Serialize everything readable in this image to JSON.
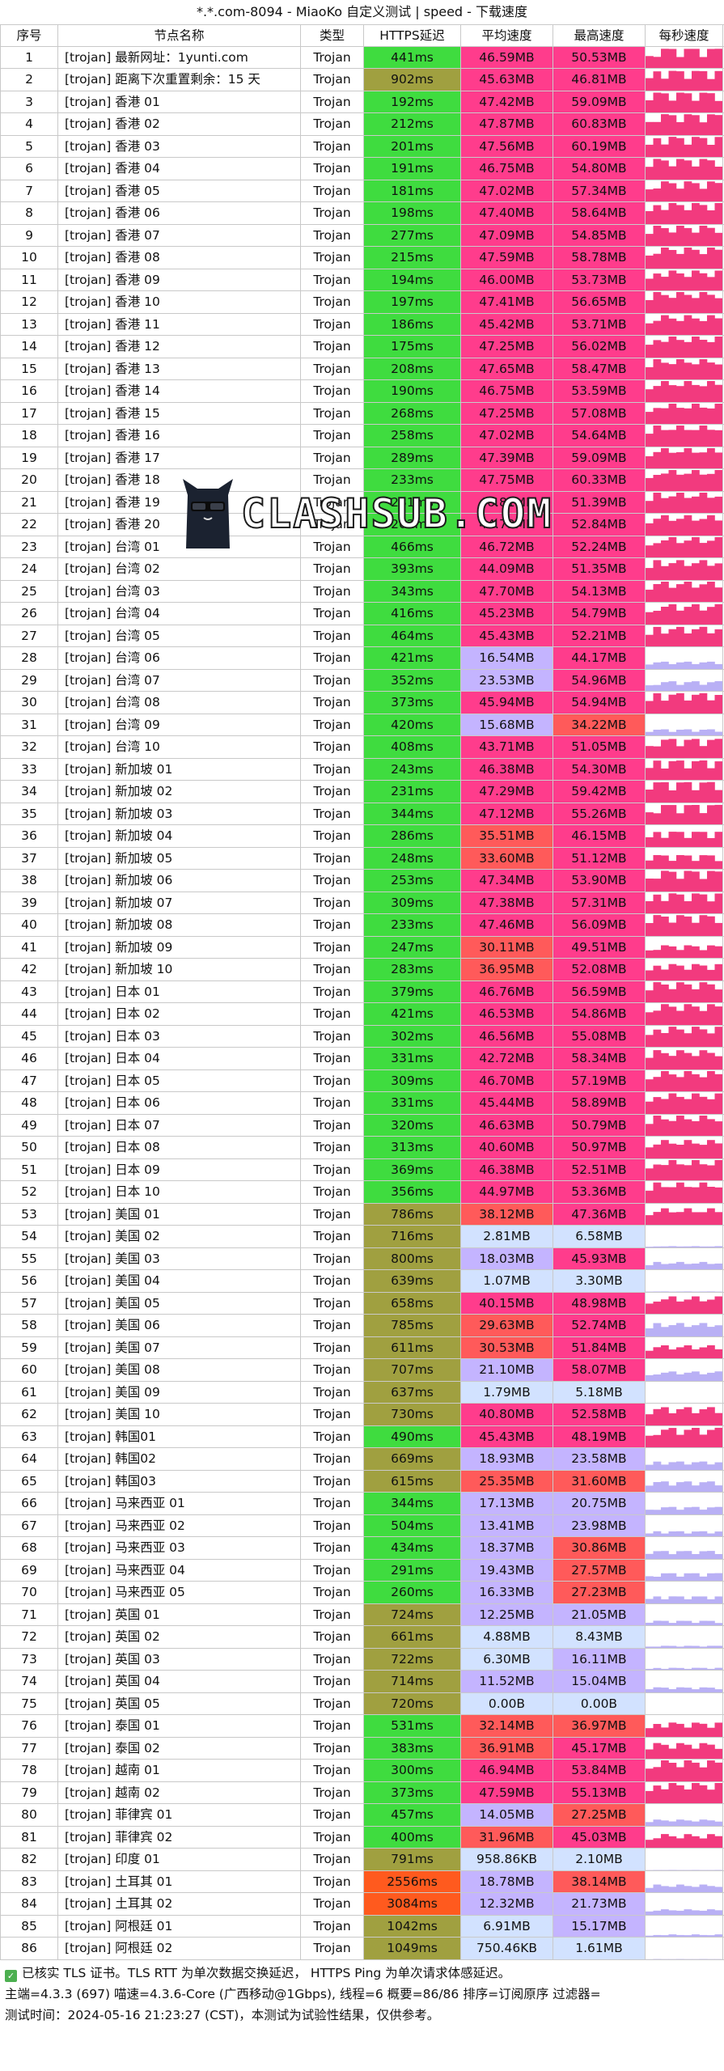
{
  "title": "*.*.com-8094 - MiaoKo 自定义测试 | speed - 下载速度",
  "watermark": {
    "text": "CLASHSUB.COM",
    "bg_text": "MiaoKo"
  },
  "columns": [
    "序号",
    "节点名称",
    "类型",
    "HTTPS延迟",
    "平均速度",
    "最高速度",
    "每秒速度"
  ],
  "colors": {
    "ping_green": "#3fdc3f",
    "ping_olive": "#a0a040",
    "ping_orange": "#ff5a1e",
    "speed_pink": "#ff3c8c",
    "speed_red": "#ff5a5a",
    "speed_lavender": "#c4b4ff",
    "speed_light": "#d2e2ff",
    "graph_pink": "#f23a7e",
    "graph_lavender": "#b9b0f5"
  },
  "rows": [
    {
      "idx": "1",
      "name": "[trojan] 最新网址：1yunti.com",
      "type": "Trojan",
      "ping": "441ms",
      "avg": "46.59MB",
      "max": "50.53MB"
    },
    {
      "idx": "2",
      "name": "[trojan] 距离下次重置剩余：15 天",
      "type": "Trojan",
      "ping": "902ms",
      "avg": "45.63MB",
      "max": "46.81MB"
    },
    {
      "idx": "3",
      "name": "[trojan] 香港 01",
      "type": "Trojan",
      "ping": "192ms",
      "avg": "47.42MB",
      "max": "59.09MB"
    },
    {
      "idx": "4",
      "name": "[trojan] 香港 02",
      "type": "Trojan",
      "ping": "212ms",
      "avg": "47.87MB",
      "max": "60.83MB"
    },
    {
      "idx": "5",
      "name": "[trojan] 香港 03",
      "type": "Trojan",
      "ping": "201ms",
      "avg": "47.56MB",
      "max": "60.19MB"
    },
    {
      "idx": "6",
      "name": "[trojan] 香港 04",
      "type": "Trojan",
      "ping": "191ms",
      "avg": "46.75MB",
      "max": "54.80MB"
    },
    {
      "idx": "7",
      "name": "[trojan] 香港 05",
      "type": "Trojan",
      "ping": "181ms",
      "avg": "47.02MB",
      "max": "57.34MB"
    },
    {
      "idx": "8",
      "name": "[trojan] 香港 06",
      "type": "Trojan",
      "ping": "198ms",
      "avg": "47.40MB",
      "max": "58.64MB"
    },
    {
      "idx": "9",
      "name": "[trojan] 香港 07",
      "type": "Trojan",
      "ping": "277ms",
      "avg": "47.09MB",
      "max": "54.85MB"
    },
    {
      "idx": "10",
      "name": "[trojan] 香港 08",
      "type": "Trojan",
      "ping": "215ms",
      "avg": "47.59MB",
      "max": "58.78MB"
    },
    {
      "idx": "11",
      "name": "[trojan] 香港 09",
      "type": "Trojan",
      "ping": "194ms",
      "avg": "46.00MB",
      "max": "53.73MB"
    },
    {
      "idx": "12",
      "name": "[trojan] 香港 10",
      "type": "Trojan",
      "ping": "197ms",
      "avg": "47.41MB",
      "max": "56.65MB"
    },
    {
      "idx": "13",
      "name": "[trojan] 香港 11",
      "type": "Trojan",
      "ping": "186ms",
      "avg": "45.42MB",
      "max": "53.71MB"
    },
    {
      "idx": "14",
      "name": "[trojan] 香港 12",
      "type": "Trojan",
      "ping": "175ms",
      "avg": "47.25MB",
      "max": "56.02MB"
    },
    {
      "idx": "15",
      "name": "[trojan] 香港 13",
      "type": "Trojan",
      "ping": "208ms",
      "avg": "47.65MB",
      "max": "58.47MB"
    },
    {
      "idx": "16",
      "name": "[trojan] 香港 14",
      "type": "Trojan",
      "ping": "190ms",
      "avg": "46.75MB",
      "max": "53.59MB"
    },
    {
      "idx": "17",
      "name": "[trojan] 香港 15",
      "type": "Trojan",
      "ping": "268ms",
      "avg": "47.25MB",
      "max": "57.08MB"
    },
    {
      "idx": "18",
      "name": "[trojan] 香港 16",
      "type": "Trojan",
      "ping": "258ms",
      "avg": "47.02MB",
      "max": "54.64MB"
    },
    {
      "idx": "19",
      "name": "[trojan] 香港 17",
      "type": "Trojan",
      "ping": "289ms",
      "avg": "47.39MB",
      "max": "59.09MB"
    },
    {
      "idx": "20",
      "name": "[trojan] 香港 18",
      "type": "Trojan",
      "ping": "233ms",
      "avg": "47.75MB",
      "max": "60.33MB"
    },
    {
      "idx": "21",
      "name": "[trojan] 香港 19",
      "type": "Trojan",
      "ping": "281ms",
      "avg": "46.81MB",
      "max": "51.39MB"
    },
    {
      "idx": "22",
      "name": "[trojan] 香港 20",
      "type": "Trojan",
      "ping": "202ms",
      "avg": "44.73MB",
      "max": "52.84MB"
    },
    {
      "idx": "23",
      "name": "[trojan] 台湾 01",
      "type": "Trojan",
      "ping": "466ms",
      "avg": "46.72MB",
      "max": "52.24MB"
    },
    {
      "idx": "24",
      "name": "[trojan] 台湾 02",
      "type": "Trojan",
      "ping": "393ms",
      "avg": "44.09MB",
      "max": "51.35MB"
    },
    {
      "idx": "25",
      "name": "[trojan] 台湾 03",
      "type": "Trojan",
      "ping": "343ms",
      "avg": "47.70MB",
      "max": "54.13MB"
    },
    {
      "idx": "26",
      "name": "[trojan] 台湾 04",
      "type": "Trojan",
      "ping": "416ms",
      "avg": "45.23MB",
      "max": "54.79MB"
    },
    {
      "idx": "27",
      "name": "[trojan] 台湾 05",
      "type": "Trojan",
      "ping": "464ms",
      "avg": "45.43MB",
      "max": "52.21MB"
    },
    {
      "idx": "28",
      "name": "[trojan] 台湾 06",
      "type": "Trojan",
      "ping": "421ms",
      "avg": "16.54MB",
      "max": "44.17MB"
    },
    {
      "idx": "29",
      "name": "[trojan] 台湾 07",
      "type": "Trojan",
      "ping": "352ms",
      "avg": "23.53MB",
      "max": "54.96MB"
    },
    {
      "idx": "30",
      "name": "[trojan] 台湾 08",
      "type": "Trojan",
      "ping": "373ms",
      "avg": "45.94MB",
      "max": "54.94MB"
    },
    {
      "idx": "31",
      "name": "[trojan] 台湾 09",
      "type": "Trojan",
      "ping": "420ms",
      "avg": "15.68MB",
      "max": "34.22MB"
    },
    {
      "idx": "32",
      "name": "[trojan] 台湾 10",
      "type": "Trojan",
      "ping": "408ms",
      "avg": "43.71MB",
      "max": "51.05MB"
    },
    {
      "idx": "33",
      "name": "[trojan] 新加坡 01",
      "type": "Trojan",
      "ping": "243ms",
      "avg": "46.38MB",
      "max": "54.30MB"
    },
    {
      "idx": "34",
      "name": "[trojan] 新加坡 02",
      "type": "Trojan",
      "ping": "231ms",
      "avg": "47.29MB",
      "max": "59.42MB"
    },
    {
      "idx": "35",
      "name": "[trojan] 新加坡 03",
      "type": "Trojan",
      "ping": "344ms",
      "avg": "47.12MB",
      "max": "55.26MB"
    },
    {
      "idx": "36",
      "name": "[trojan] 新加坡 04",
      "type": "Trojan",
      "ping": "286ms",
      "avg": "35.51MB",
      "max": "46.15MB"
    },
    {
      "idx": "37",
      "name": "[trojan] 新加坡 05",
      "type": "Trojan",
      "ping": "248ms",
      "avg": "33.60MB",
      "max": "51.12MB"
    },
    {
      "idx": "38",
      "name": "[trojan] 新加坡 06",
      "type": "Trojan",
      "ping": "253ms",
      "avg": "47.34MB",
      "max": "53.90MB"
    },
    {
      "idx": "39",
      "name": "[trojan] 新加坡 07",
      "type": "Trojan",
      "ping": "309ms",
      "avg": "47.38MB",
      "max": "57.31MB"
    },
    {
      "idx": "40",
      "name": "[trojan] 新加坡 08",
      "type": "Trojan",
      "ping": "233ms",
      "avg": "47.46MB",
      "max": "56.09MB"
    },
    {
      "idx": "41",
      "name": "[trojan] 新加坡 09",
      "type": "Trojan",
      "ping": "247ms",
      "avg": "30.11MB",
      "max": "49.51MB"
    },
    {
      "idx": "42",
      "name": "[trojan] 新加坡 10",
      "type": "Trojan",
      "ping": "283ms",
      "avg": "36.95MB",
      "max": "52.08MB"
    },
    {
      "idx": "43",
      "name": "[trojan] 日本 01",
      "type": "Trojan",
      "ping": "379ms",
      "avg": "46.76MB",
      "max": "56.59MB"
    },
    {
      "idx": "44",
      "name": "[trojan] 日本 02",
      "type": "Trojan",
      "ping": "421ms",
      "avg": "46.53MB",
      "max": "54.86MB"
    },
    {
      "idx": "45",
      "name": "[trojan] 日本 03",
      "type": "Trojan",
      "ping": "302ms",
      "avg": "46.56MB",
      "max": "55.08MB"
    },
    {
      "idx": "46",
      "name": "[trojan] 日本 04",
      "type": "Trojan",
      "ping": "331ms",
      "avg": "42.72MB",
      "max": "58.34MB"
    },
    {
      "idx": "47",
      "name": "[trojan] 日本 05",
      "type": "Trojan",
      "ping": "309ms",
      "avg": "46.70MB",
      "max": "57.19MB"
    },
    {
      "idx": "48",
      "name": "[trojan] 日本 06",
      "type": "Trojan",
      "ping": "331ms",
      "avg": "45.44MB",
      "max": "58.89MB"
    },
    {
      "idx": "49",
      "name": "[trojan] 日本 07",
      "type": "Trojan",
      "ping": "320ms",
      "avg": "46.63MB",
      "max": "50.79MB"
    },
    {
      "idx": "50",
      "name": "[trojan] 日本 08",
      "type": "Trojan",
      "ping": "313ms",
      "avg": "40.60MB",
      "max": "50.97MB"
    },
    {
      "idx": "51",
      "name": "[trojan] 日本 09",
      "type": "Trojan",
      "ping": "369ms",
      "avg": "46.38MB",
      "max": "52.51MB"
    },
    {
      "idx": "52",
      "name": "[trojan] 日本 10",
      "type": "Trojan",
      "ping": "356ms",
      "avg": "44.97MB",
      "max": "53.36MB"
    },
    {
      "idx": "53",
      "name": "[trojan] 美国 01",
      "type": "Trojan",
      "ping": "786ms",
      "avg": "38.12MB",
      "max": "47.36MB"
    },
    {
      "idx": "54",
      "name": "[trojan] 美国 02",
      "type": "Trojan",
      "ping": "716ms",
      "avg": "2.81MB",
      "max": "6.58MB"
    },
    {
      "idx": "55",
      "name": "[trojan] 美国 03",
      "type": "Trojan",
      "ping": "800ms",
      "avg": "18.03MB",
      "max": "45.93MB"
    },
    {
      "idx": "56",
      "name": "[trojan] 美国 04",
      "type": "Trojan",
      "ping": "639ms",
      "avg": "1.07MB",
      "max": "3.30MB"
    },
    {
      "idx": "57",
      "name": "[trojan] 美国 05",
      "type": "Trojan",
      "ping": "658ms",
      "avg": "40.15MB",
      "max": "48.98MB"
    },
    {
      "idx": "58",
      "name": "[trojan] 美国 06",
      "type": "Trojan",
      "ping": "785ms",
      "avg": "29.63MB",
      "max": "52.74MB"
    },
    {
      "idx": "59",
      "name": "[trojan] 美国 07",
      "type": "Trojan",
      "ping": "611ms",
      "avg": "30.53MB",
      "max": "51.84MB"
    },
    {
      "idx": "60",
      "name": "[trojan] 美国 08",
      "type": "Trojan",
      "ping": "707ms",
      "avg": "21.10MB",
      "max": "58.07MB"
    },
    {
      "idx": "61",
      "name": "[trojan] 美国 09",
      "type": "Trojan",
      "ping": "637ms",
      "avg": "1.79MB",
      "max": "5.18MB"
    },
    {
      "idx": "62",
      "name": "[trojan] 美国 10",
      "type": "Trojan",
      "ping": "730ms",
      "avg": "40.80MB",
      "max": "52.58MB"
    },
    {
      "idx": "63",
      "name": "[trojan] 韩国01",
      "type": "Trojan",
      "ping": "490ms",
      "avg": "45.43MB",
      "max": "48.19MB"
    },
    {
      "idx": "64",
      "name": "[trojan] 韩国02",
      "type": "Trojan",
      "ping": "669ms",
      "avg": "18.93MB",
      "max": "23.58MB"
    },
    {
      "idx": "65",
      "name": "[trojan] 韩国03",
      "type": "Trojan",
      "ping": "615ms",
      "avg": "25.35MB",
      "max": "31.60MB"
    },
    {
      "idx": "66",
      "name": "[trojan] 马来西亚 01",
      "type": "Trojan",
      "ping": "344ms",
      "avg": "17.13MB",
      "max": "20.75MB"
    },
    {
      "idx": "67",
      "name": "[trojan] 马来西亚 02",
      "type": "Trojan",
      "ping": "504ms",
      "avg": "13.41MB",
      "max": "23.98MB"
    },
    {
      "idx": "68",
      "name": "[trojan] 马来西亚 03",
      "type": "Trojan",
      "ping": "434ms",
      "avg": "18.37MB",
      "max": "30.86MB"
    },
    {
      "idx": "69",
      "name": "[trojan] 马来西亚 04",
      "type": "Trojan",
      "ping": "291ms",
      "avg": "19.43MB",
      "max": "27.57MB"
    },
    {
      "idx": "70",
      "name": "[trojan] 马来西亚 05",
      "type": "Trojan",
      "ping": "260ms",
      "avg": "16.33MB",
      "max": "27.23MB"
    },
    {
      "idx": "71",
      "name": "[trojan] 英国 01",
      "type": "Trojan",
      "ping": "724ms",
      "avg": "12.25MB",
      "max": "21.05MB"
    },
    {
      "idx": "72",
      "name": "[trojan] 英国 02",
      "type": "Trojan",
      "ping": "661ms",
      "avg": "4.88MB",
      "max": "8.43MB"
    },
    {
      "idx": "73",
      "name": "[trojan] 英国 03",
      "type": "Trojan",
      "ping": "722ms",
      "avg": "6.30MB",
      "max": "16.11MB"
    },
    {
      "idx": "74",
      "name": "[trojan] 英国 04",
      "type": "Trojan",
      "ping": "714ms",
      "avg": "11.52MB",
      "max": "15.04MB"
    },
    {
      "idx": "75",
      "name": "[trojan] 英国 05",
      "type": "Trojan",
      "ping": "720ms",
      "avg": "0.00B",
      "max": "0.00B"
    },
    {
      "idx": "76",
      "name": "[trojan] 泰国 01",
      "type": "Trojan",
      "ping": "531ms",
      "avg": "32.14MB",
      "max": "36.97MB"
    },
    {
      "idx": "77",
      "name": "[trojan] 泰国 02",
      "type": "Trojan",
      "ping": "383ms",
      "avg": "36.91MB",
      "max": "45.17MB"
    },
    {
      "idx": "78",
      "name": "[trojan] 越南 01",
      "type": "Trojan",
      "ping": "300ms",
      "avg": "46.94MB",
      "max": "53.84MB"
    },
    {
      "idx": "79",
      "name": "[trojan] 越南 02",
      "type": "Trojan",
      "ping": "373ms",
      "avg": "47.59MB",
      "max": "55.13MB"
    },
    {
      "idx": "80",
      "name": "[trojan] 菲律宾 01",
      "type": "Trojan",
      "ping": "457ms",
      "avg": "14.05MB",
      "max": "27.25MB"
    },
    {
      "idx": "81",
      "name": "[trojan] 菲律宾 02",
      "type": "Trojan",
      "ping": "400ms",
      "avg": "31.96MB",
      "max": "45.03MB"
    },
    {
      "idx": "82",
      "name": "[trojan] 印度 01",
      "type": "Trojan",
      "ping": "791ms",
      "avg": "958.86KB",
      "max": "2.10MB"
    },
    {
      "idx": "83",
      "name": "[trojan] 土耳其 01",
      "type": "Trojan",
      "ping": "2556ms",
      "avg": "18.78MB",
      "max": "38.14MB"
    },
    {
      "idx": "84",
      "name": "[trojan] 土耳其 02",
      "type": "Trojan",
      "ping": "3084ms",
      "avg": "12.32MB",
      "max": "21.73MB"
    },
    {
      "idx": "85",
      "name": "[trojan] 阿根廷 01",
      "type": "Trojan",
      "ping": "1042ms",
      "avg": "6.91MB",
      "max": "15.17MB"
    },
    {
      "idx": "86",
      "name": "[trojan] 阿根廷 02",
      "type": "Trojan",
      "ping": "1049ms",
      "avg": "750.46KB",
      "max": "1.61MB"
    }
  ],
  "footer": {
    "line1": "已核实 TLS 证书。TLS RTT 为单次数据交换延迟， HTTPS Ping 为单次请求体感延迟。",
    "line2": "主端=4.3.3 (697) 喵速=4.3.6-Core (广西移动@1Gbps), 线程=6 概要=86/86 排序=订阅原序 过滤器=",
    "line3": "测试时间：2024-05-16 21:23:27 (CST)，本测试为试验性结果，仅供参考。"
  }
}
